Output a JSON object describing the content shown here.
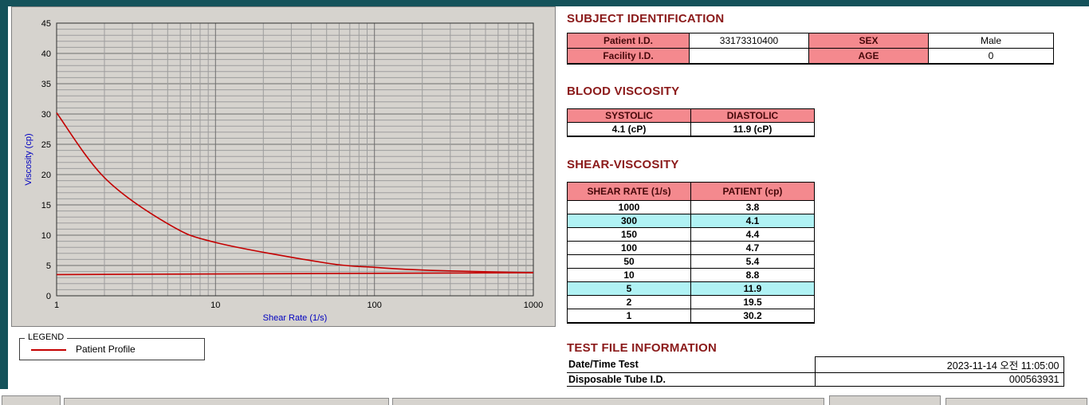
{
  "window": {
    "top_bar_color": "#14525a",
    "left_bar_color": "#14525a",
    "panel_bg": "#d6d3ce"
  },
  "colors": {
    "heading": "#8b1a1a",
    "table_header_bg": "#f4898e",
    "table_header_text": "#46080a",
    "highlight_bg": "#b0f2f4",
    "curve": "#c40000",
    "axis_title": "#0000c0"
  },
  "legend": {
    "box_label": "LEGEND",
    "series_label": "Patient Profile"
  },
  "chart_data": {
    "type": "line",
    "x_scale": "log",
    "xlabel": "Shear Rate (1/s)",
    "ylabel": "Viscosity (cp)",
    "xlim": [
      1,
      1000
    ],
    "ylim": [
      0,
      45
    ],
    "x_ticks": [
      1,
      10,
      100,
      1000
    ],
    "y_ticks": [
      0,
      5,
      10,
      15,
      20,
      25,
      30,
      35,
      40,
      45
    ],
    "grid": "dense: log minor verticals, unit horizontals, majors every 5 and each decade",
    "legend_position": "below-chart-left",
    "series": [
      {
        "name": "Patient Profile",
        "smooth": true,
        "x": [
          1,
          2,
          5,
          10,
          50,
          100,
          150,
          300,
          1000
        ],
        "y": [
          30.2,
          19.5,
          11.9,
          8.8,
          5.4,
          4.7,
          4.4,
          4.1,
          3.8
        ]
      },
      {
        "name": "Baseline",
        "smooth": false,
        "x": [
          1,
          1000
        ],
        "y": [
          3.5,
          3.8
        ]
      }
    ]
  },
  "subject": {
    "heading": "SUBJECT IDENTIFICATION",
    "rows": [
      {
        "label1": "Patient I.D.",
        "value1": "33173310400",
        "label2": "SEX",
        "value2": "Male"
      },
      {
        "label1": "Facility I.D.",
        "value1": "",
        "label2": "AGE",
        "value2": "0"
      }
    ]
  },
  "blood_viscosity": {
    "heading": "BLOOD VISCOSITY",
    "columns": [
      "SYSTOLIC",
      "DIASTOLIC"
    ],
    "values": [
      "4.1 (cP)",
      "11.9 (cP)"
    ]
  },
  "shear_viscosity": {
    "heading": "SHEAR-VISCOSITY",
    "columns": [
      "SHEAR RATE (1/s)",
      "PATIENT (cp)"
    ],
    "rows": [
      {
        "rate": "1000",
        "value": "3.8",
        "highlight": false
      },
      {
        "rate": "300",
        "value": "4.1",
        "highlight": true
      },
      {
        "rate": "150",
        "value": "4.4",
        "highlight": false
      },
      {
        "rate": "100",
        "value": "4.7",
        "highlight": false
      },
      {
        "rate": "50",
        "value": "5.4",
        "highlight": false
      },
      {
        "rate": "10",
        "value": "8.8",
        "highlight": false
      },
      {
        "rate": "5",
        "value": "11.9",
        "highlight": true
      },
      {
        "rate": "2",
        "value": "19.5",
        "highlight": false
      },
      {
        "rate": "1",
        "value": "30.2",
        "highlight": false
      }
    ]
  },
  "test_file": {
    "heading": "TEST FILE INFORMATION",
    "rows": [
      {
        "label": "Date/Time Test",
        "value": "2023-11-14  오전 11:05:00"
      },
      {
        "label": "Disposable Tube I.D.",
        "value": "000563931"
      }
    ]
  }
}
